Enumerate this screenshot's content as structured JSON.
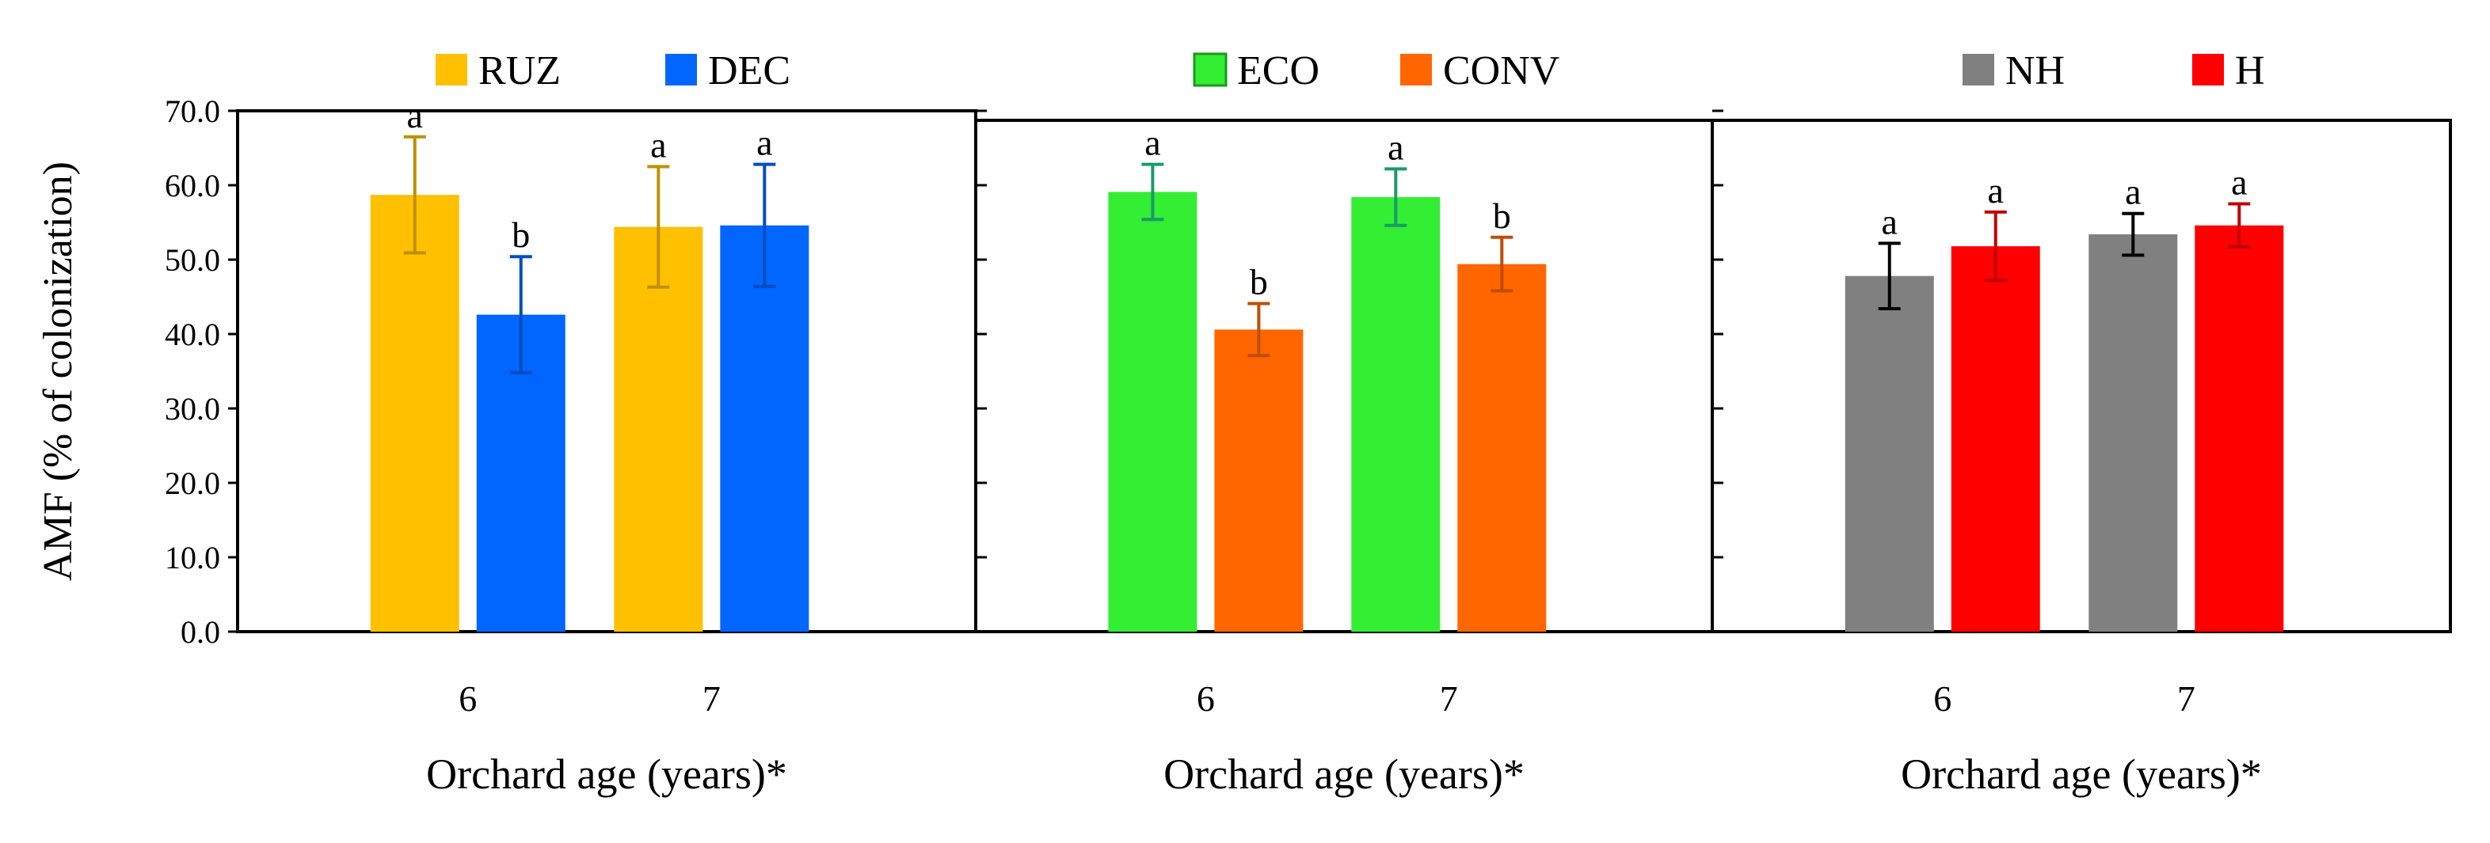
{
  "chart_data": [
    {
      "type": "bar",
      "categories": [
        "6",
        "7"
      ],
      "series": [
        {
          "name": "RUZ",
          "color": "#FFC000",
          "values": [
            58.7,
            54.4
          ],
          "errors": [
            7.8,
            8.1
          ],
          "labels": [
            "a",
            "a"
          ]
        },
        {
          "name": "DEC",
          "color": "#0066FF",
          "values": [
            42.6,
            54.6
          ],
          "errors": [
            7.8,
            8.2
          ],
          "labels": [
            "b",
            "a"
          ]
        }
      ],
      "xlabel": "Orchard age (years)*",
      "ylabel": "AMF (% of colonization)",
      "ylim": [
        0,
        70
      ],
      "yticks": [
        "0.0",
        "10.0",
        "20.0",
        "30.0",
        "40.0",
        "50.0",
        "60.0",
        "70.0"
      ],
      "legend": "top",
      "grid": false
    },
    {
      "type": "bar",
      "categories": [
        "6",
        "7"
      ],
      "series": [
        {
          "name": "ECO",
          "color": "#33EE33",
          "values": [
            59.1,
            58.4
          ],
          "errors": [
            3.7,
            3.8
          ],
          "labels": [
            "a",
            "a"
          ]
        },
        {
          "name": "CONV",
          "color": "#FF6600",
          "values": [
            40.6,
            49.4
          ],
          "errors": [
            3.5,
            3.6
          ],
          "labels": [
            "b",
            "b"
          ]
        }
      ],
      "xlabel": "Orchard age (years)*",
      "ylabel": "",
      "ylim": [
        0,
        70
      ],
      "legend": "top",
      "grid": false
    },
    {
      "type": "bar",
      "categories": [
        "6",
        "7"
      ],
      "series": [
        {
          "name": "NH",
          "color": "#808080",
          "values": [
            47.8,
            53.4
          ],
          "errors": [
            4.4,
            2.8
          ],
          "labels": [
            "a",
            "a"
          ]
        },
        {
          "name": "H",
          "color": "#FF0000",
          "values": [
            51.8,
            54.6
          ],
          "errors": [
            4.6,
            2.9
          ],
          "labels": [
            "a",
            "a"
          ]
        }
      ],
      "xlabel": "Orchard age (years)*",
      "ylabel": "",
      "ylim": [
        0,
        70
      ],
      "legend": "top",
      "grid": false
    }
  ]
}
